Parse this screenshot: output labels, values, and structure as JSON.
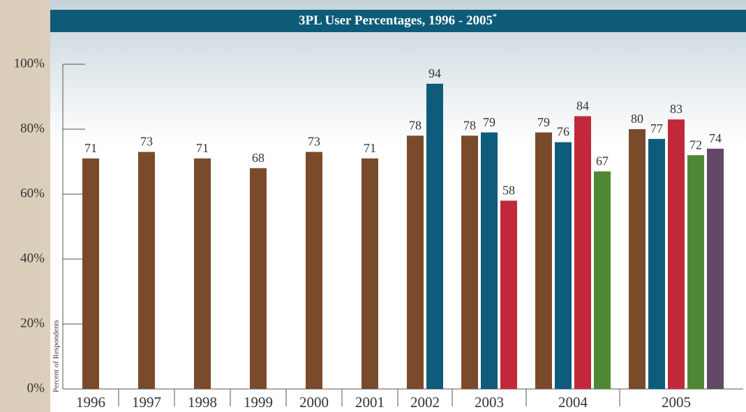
{
  "chart_data": {
    "type": "bar",
    "title": "3PL User Percentages, 1996 - 2005",
    "title_mark": "*",
    "ylabel": "Percent of Respondents",
    "categories": [
      "1996",
      "1997",
      "1998",
      "1999",
      "2000",
      "2001",
      "2002",
      "2003",
      "2004",
      "2005"
    ],
    "series": [
      {
        "color": "#7a4b2b",
        "values": [
          71,
          73,
          71,
          68,
          73,
          71,
          78,
          78,
          79,
          80
        ]
      },
      {
        "color": "#0f5b7b",
        "values": [
          null,
          null,
          null,
          null,
          null,
          null,
          94,
          79,
          76,
          77
        ]
      },
      {
        "color": "#c1293b",
        "values": [
          null,
          null,
          null,
          null,
          null,
          null,
          null,
          58,
          84,
          83
        ]
      },
      {
        "color": "#4f8834",
        "values": [
          null,
          null,
          null,
          null,
          null,
          null,
          null,
          null,
          67,
          72
        ]
      },
      {
        "color": "#634867",
        "values": [
          null,
          null,
          null,
          null,
          null,
          null,
          null,
          null,
          null,
          74
        ]
      }
    ],
    "ylim": [
      0,
      100
    ],
    "yticks": [
      {
        "value": 0,
        "label": "0%"
      },
      {
        "value": 20,
        "label": "20%"
      },
      {
        "value": 40,
        "label": "40%"
      },
      {
        "value": 60,
        "label": "60%"
      },
      {
        "value": 80,
        "label": "80%"
      },
      {
        "value": 100,
        "label": "100%"
      }
    ]
  }
}
